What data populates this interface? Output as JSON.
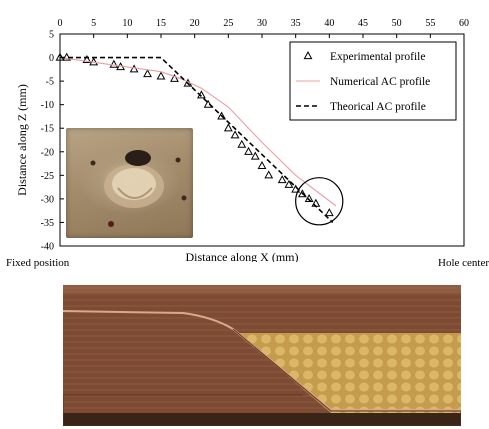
{
  "chart_data": {
    "type": "scatter",
    "xlabel": "Distance along X (mm)",
    "ylabel": "Distance along Z (mm)",
    "xlim": [
      0,
      60
    ],
    "ylim": [
      -40,
      5
    ],
    "x_ticks": [
      0,
      5,
      10,
      15,
      20,
      25,
      30,
      35,
      40,
      45,
      50,
      55,
      60
    ],
    "y_ticks": [
      5,
      0,
      -5,
      -10,
      -15,
      -20,
      -25,
      -30,
      -35,
      -40
    ],
    "x_axis_position": "top",
    "grid": false,
    "legend_position": "top-right",
    "series": [
      {
        "name": "Experimental profile",
        "style": "triangle-markers",
        "color": "#000000",
        "x": [
          0,
          1,
          4,
          5,
          8,
          9,
          11,
          13,
          15,
          17,
          19,
          21,
          22,
          24,
          25,
          26,
          27,
          28,
          29,
          30,
          31,
          33,
          34,
          35,
          36,
          37,
          38,
          40
        ],
        "y": [
          0,
          0,
          -0.5,
          -1,
          -1.5,
          -2,
          -2.5,
          -3.5,
          -4,
          -4.5,
          -5.5,
          -8,
          -10,
          -12.5,
          -15,
          -16.5,
          -18.5,
          -20,
          -21,
          -23,
          -25,
          -26,
          -27,
          -28,
          -29,
          -30,
          -31,
          -33
        ]
      },
      {
        "name": "Numerical AC profile",
        "style": "solid-line",
        "color": "#e8a0a4",
        "x": [
          0,
          15,
          18,
          21,
          25,
          30,
          35,
          41
        ],
        "y": [
          0,
          -3,
          -4.5,
          -6.5,
          -10.5,
          -18,
          -25,
          -31.5
        ]
      },
      {
        "name": "Theorical AC profile",
        "style": "dashed-line",
        "color": "#000000",
        "x": [
          0,
          15,
          40.5
        ],
        "y": [
          0,
          0,
          -35
        ]
      }
    ],
    "annotation": {
      "type": "circle",
      "cx": 38.5,
      "cy": -30.5,
      "r_data_x": 3.5
    }
  },
  "captions": {
    "left": "Fixed position",
    "right": "Hole center"
  },
  "inset": {
    "name": "formed-sheet-photo"
  },
  "photo": {
    "name": "cross-section-photo"
  }
}
